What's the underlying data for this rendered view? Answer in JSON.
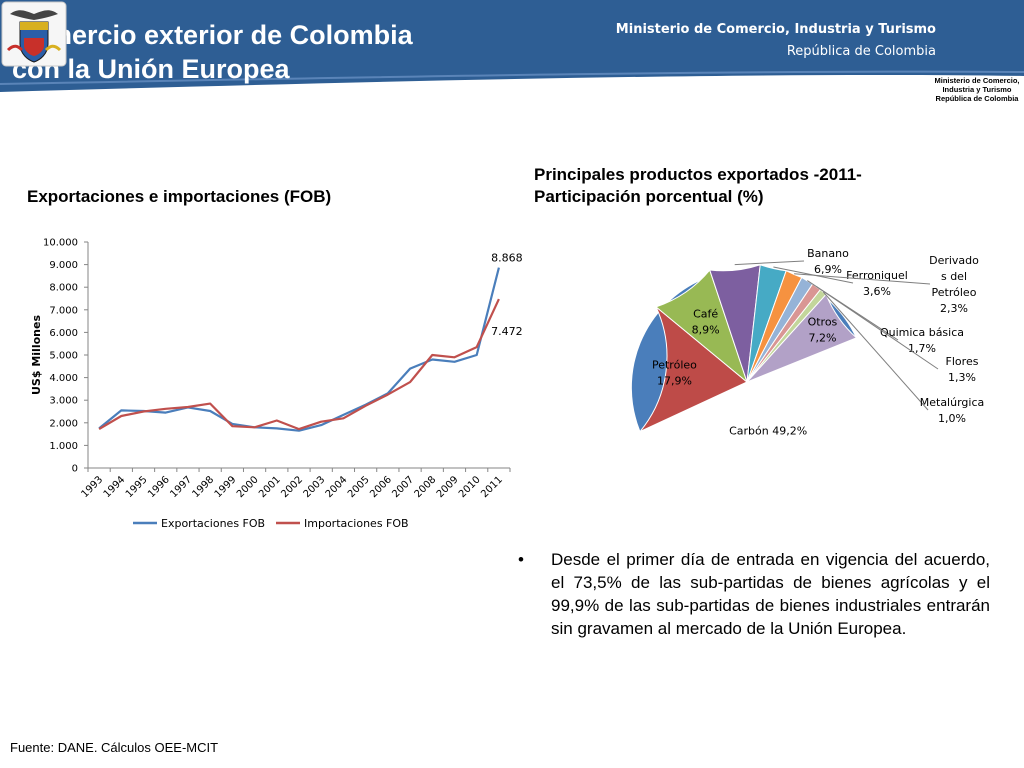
{
  "header": {
    "title_line1": "Comercio exterior de Colombia",
    "title_line2": "con la Unión Europea",
    "ministry": "Ministerio de Comercio, Industria y Turismo",
    "republic": "República de Colombia",
    "crest_caption": [
      "Ministerio de Comercio,",
      "Industria y Turismo",
      "República de Colombia"
    ],
    "band_color": "#2e5e94"
  },
  "bullet": {
    "symbol": "•",
    "text": "Desde el primer día de entrada en vigencia del acuerdo, el 73,5% de las sub-partidas de bienes agrícolas y el 99,9% de las sub-partidas de bienes industriales entrarán sin gravamen al mercado de la Unión Europea."
  },
  "source": "Fuente: DANE. Cálculos OEE-MCIT",
  "chart_data": [
    {
      "type": "line",
      "title": "Exportaciones e importaciones (FOB)",
      "xlabel": "",
      "ylabel": "US$ Millones",
      "ylim": [
        0,
        10000
      ],
      "yticks": [
        "0",
        "1.000",
        "2.000",
        "3.000",
        "4.000",
        "5.000",
        "6.000",
        "7.000",
        "8.000",
        "9.000",
        "10.000"
      ],
      "x": [
        "1993",
        "1994",
        "1995",
        "1996",
        "1997",
        "1998",
        "1999",
        "2000",
        "2001",
        "2002",
        "2003",
        "2004",
        "2005",
        "2006",
        "2007",
        "2008",
        "2009",
        "2010",
        "2011"
      ],
      "series": [
        {
          "name": "Exportaciones FOB",
          "color": "#4a7ebb",
          "values": [
            1750,
            2550,
            2520,
            2450,
            2680,
            2520,
            1950,
            1800,
            1750,
            1650,
            1900,
            2350,
            2800,
            3300,
            4400,
            4800,
            4700,
            5000,
            8868
          ]
        },
        {
          "name": "Importaciones FOB",
          "color": "#c0504d",
          "values": [
            1720,
            2300,
            2500,
            2620,
            2700,
            2850,
            1850,
            1800,
            2100,
            1720,
            2050,
            2200,
            2750,
            3250,
            3800,
            5000,
            4900,
            5350,
            7472
          ]
        }
      ],
      "data_labels": [
        {
          "series": "Exportaciones FOB",
          "x": "2011",
          "text": "8.868"
        },
        {
          "series": "Importaciones FOB",
          "x": "2011",
          "text": "7.472"
        }
      ],
      "legend": "bottom",
      "grid": false
    },
    {
      "type": "pie",
      "title_line1": "Principales productos exportados -2011-",
      "title_line2": "Participación porcentual (%)",
      "slices": [
        {
          "label": "Carbón 49,2%",
          "value": 49.2,
          "color": "#4a7ebb"
        },
        {
          "label": "Petróleo 17,9%",
          "value": 17.9,
          "color": "#be4b48"
        },
        {
          "label": "Café 8,9%",
          "value": 8.9,
          "color": "#98b954"
        },
        {
          "label": "Banano 6,9%",
          "value": 6.9,
          "color": "#7d5fa0"
        },
        {
          "label": "Ferroniquel 3,6%",
          "value": 3.6,
          "color": "#46aac5"
        },
        {
          "label": "Derivados del Petróleo 2,3%",
          "value": 2.3,
          "color": "#f69240"
        },
        {
          "label": "Quimica básica 1,7%",
          "value": 1.7,
          "color": "#95b3d7"
        },
        {
          "label": "Flores 1,3%",
          "value": 1.3,
          "color": "#d99694"
        },
        {
          "label": "Metalúrgica 1,0%",
          "value": 1.0,
          "color": "#c3d69b"
        },
        {
          "label": "Otros 7,2%",
          "value": 7.2,
          "color": "#b2a1c7"
        }
      ],
      "label_lines": [
        [
          "Carbón 49,2%"
        ],
        [
          "Petróleo",
          "17,9%"
        ],
        [
          "Café",
          "8,9%"
        ],
        [
          "Banano",
          "6,9%"
        ],
        [
          "Ferroniquel",
          "3,6%"
        ],
        [
          "Derivado",
          "s del",
          "Petróleo",
          "2,3%"
        ],
        [
          "Quimica básica",
          "1,7%"
        ],
        [
          "Flores",
          "1,3%"
        ],
        [
          "Metalúrgica",
          "1,0%"
        ],
        [
          "Otros",
          "7,2%"
        ]
      ]
    }
  ]
}
